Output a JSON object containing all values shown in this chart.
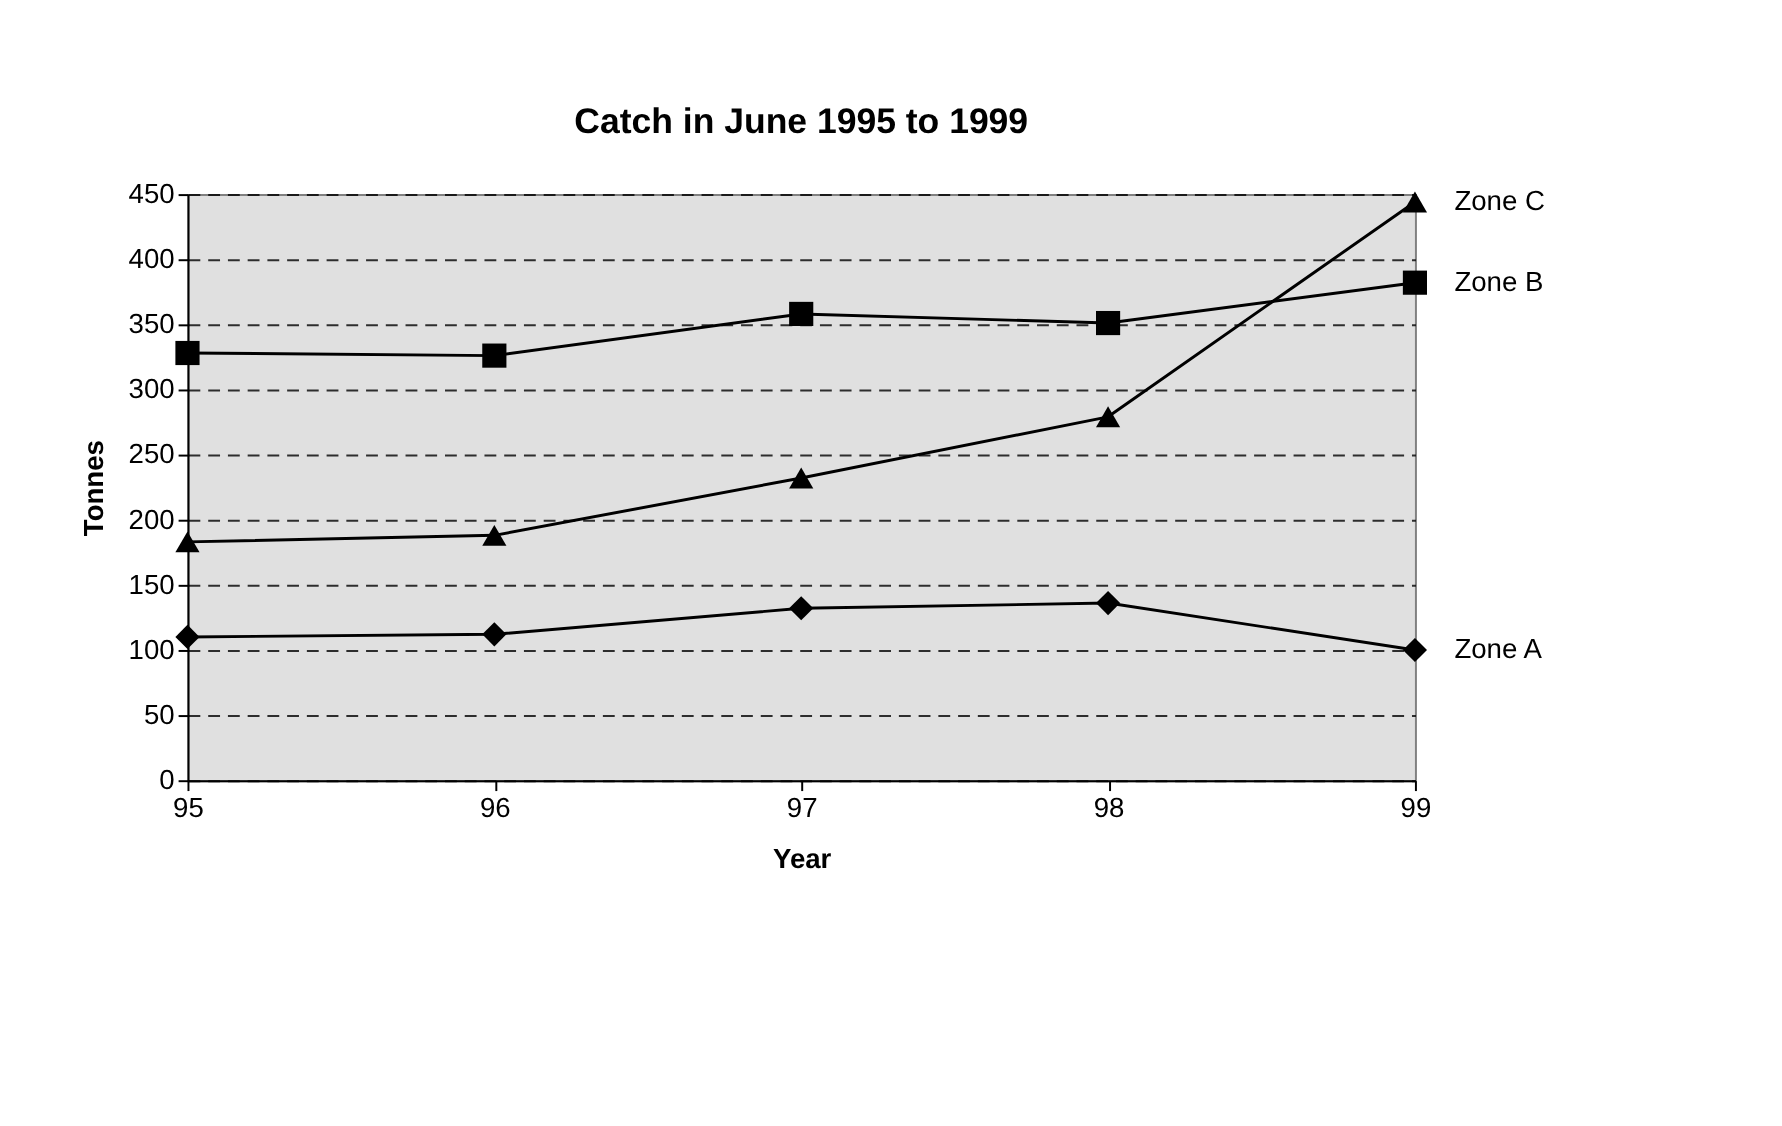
{
  "chart_data": {
    "type": "line",
    "title": "Catch in June 1995 to 1999",
    "xlabel": "Year",
    "ylabel": "Tonnes",
    "categories": [
      "95",
      "96",
      "97",
      "98",
      "99"
    ],
    "series": [
      {
        "name": "Zone A",
        "color": "#000000",
        "marker": "diamond",
        "values": [
          110,
          112,
          132,
          136,
          100
        ]
      },
      {
        "name": "Zone B",
        "color": "#000000",
        "marker": "square",
        "values": [
          328,
          326,
          358,
          351,
          382
        ]
      },
      {
        "name": "Zone C",
        "color": "#000000",
        "marker": "triangle",
        "values": [
          183,
          188,
          232,
          279,
          444
        ]
      }
    ],
    "ylim": [
      0,
      450
    ],
    "yticks": [
      0,
      50,
      100,
      150,
      200,
      250,
      300,
      350,
      400,
      450
    ],
    "grid": "y",
    "line_style": "solid"
  }
}
